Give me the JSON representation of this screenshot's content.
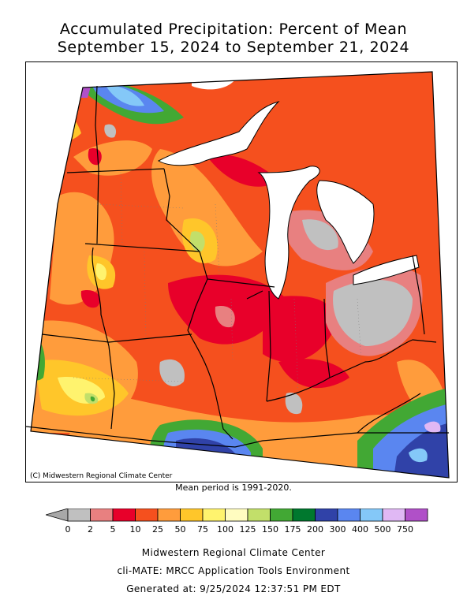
{
  "title": {
    "line1": "Accumulated Precipitation: Percent of Mean",
    "line2": "September 15, 2024 to September 21, 2024"
  },
  "map": {
    "credit": "(C) Midwestern Regional Climate Center",
    "mean_period": "Mean period is 1991-2020."
  },
  "legend": {
    "ticks": [
      "0",
      "2",
      "5",
      "10",
      "25",
      "50",
      "75",
      "100",
      "125",
      "150",
      "175",
      "200",
      "300",
      "400",
      "500",
      "750"
    ],
    "colors": [
      "#c0c0c0",
      "#e88080",
      "#e8002a",
      "#f5501e",
      "#ff9c3c",
      "#ffc62a",
      "#fff36e",
      "#fffcc0",
      "#c2df6a",
      "#42a834",
      "#00782e",
      "#3042a8",
      "#5a86f0",
      "#84c8f8",
      "#e0b8f4",
      "#b050c8"
    ],
    "under_color": "#a8a8a8"
  },
  "footer": {
    "line1": "Midwestern Regional Climate Center",
    "line2": "cli-MATE: MRCC Application Tools Environment",
    "line3": "Generated at: 9/25/2024 12:37:51 PM EDT"
  }
}
